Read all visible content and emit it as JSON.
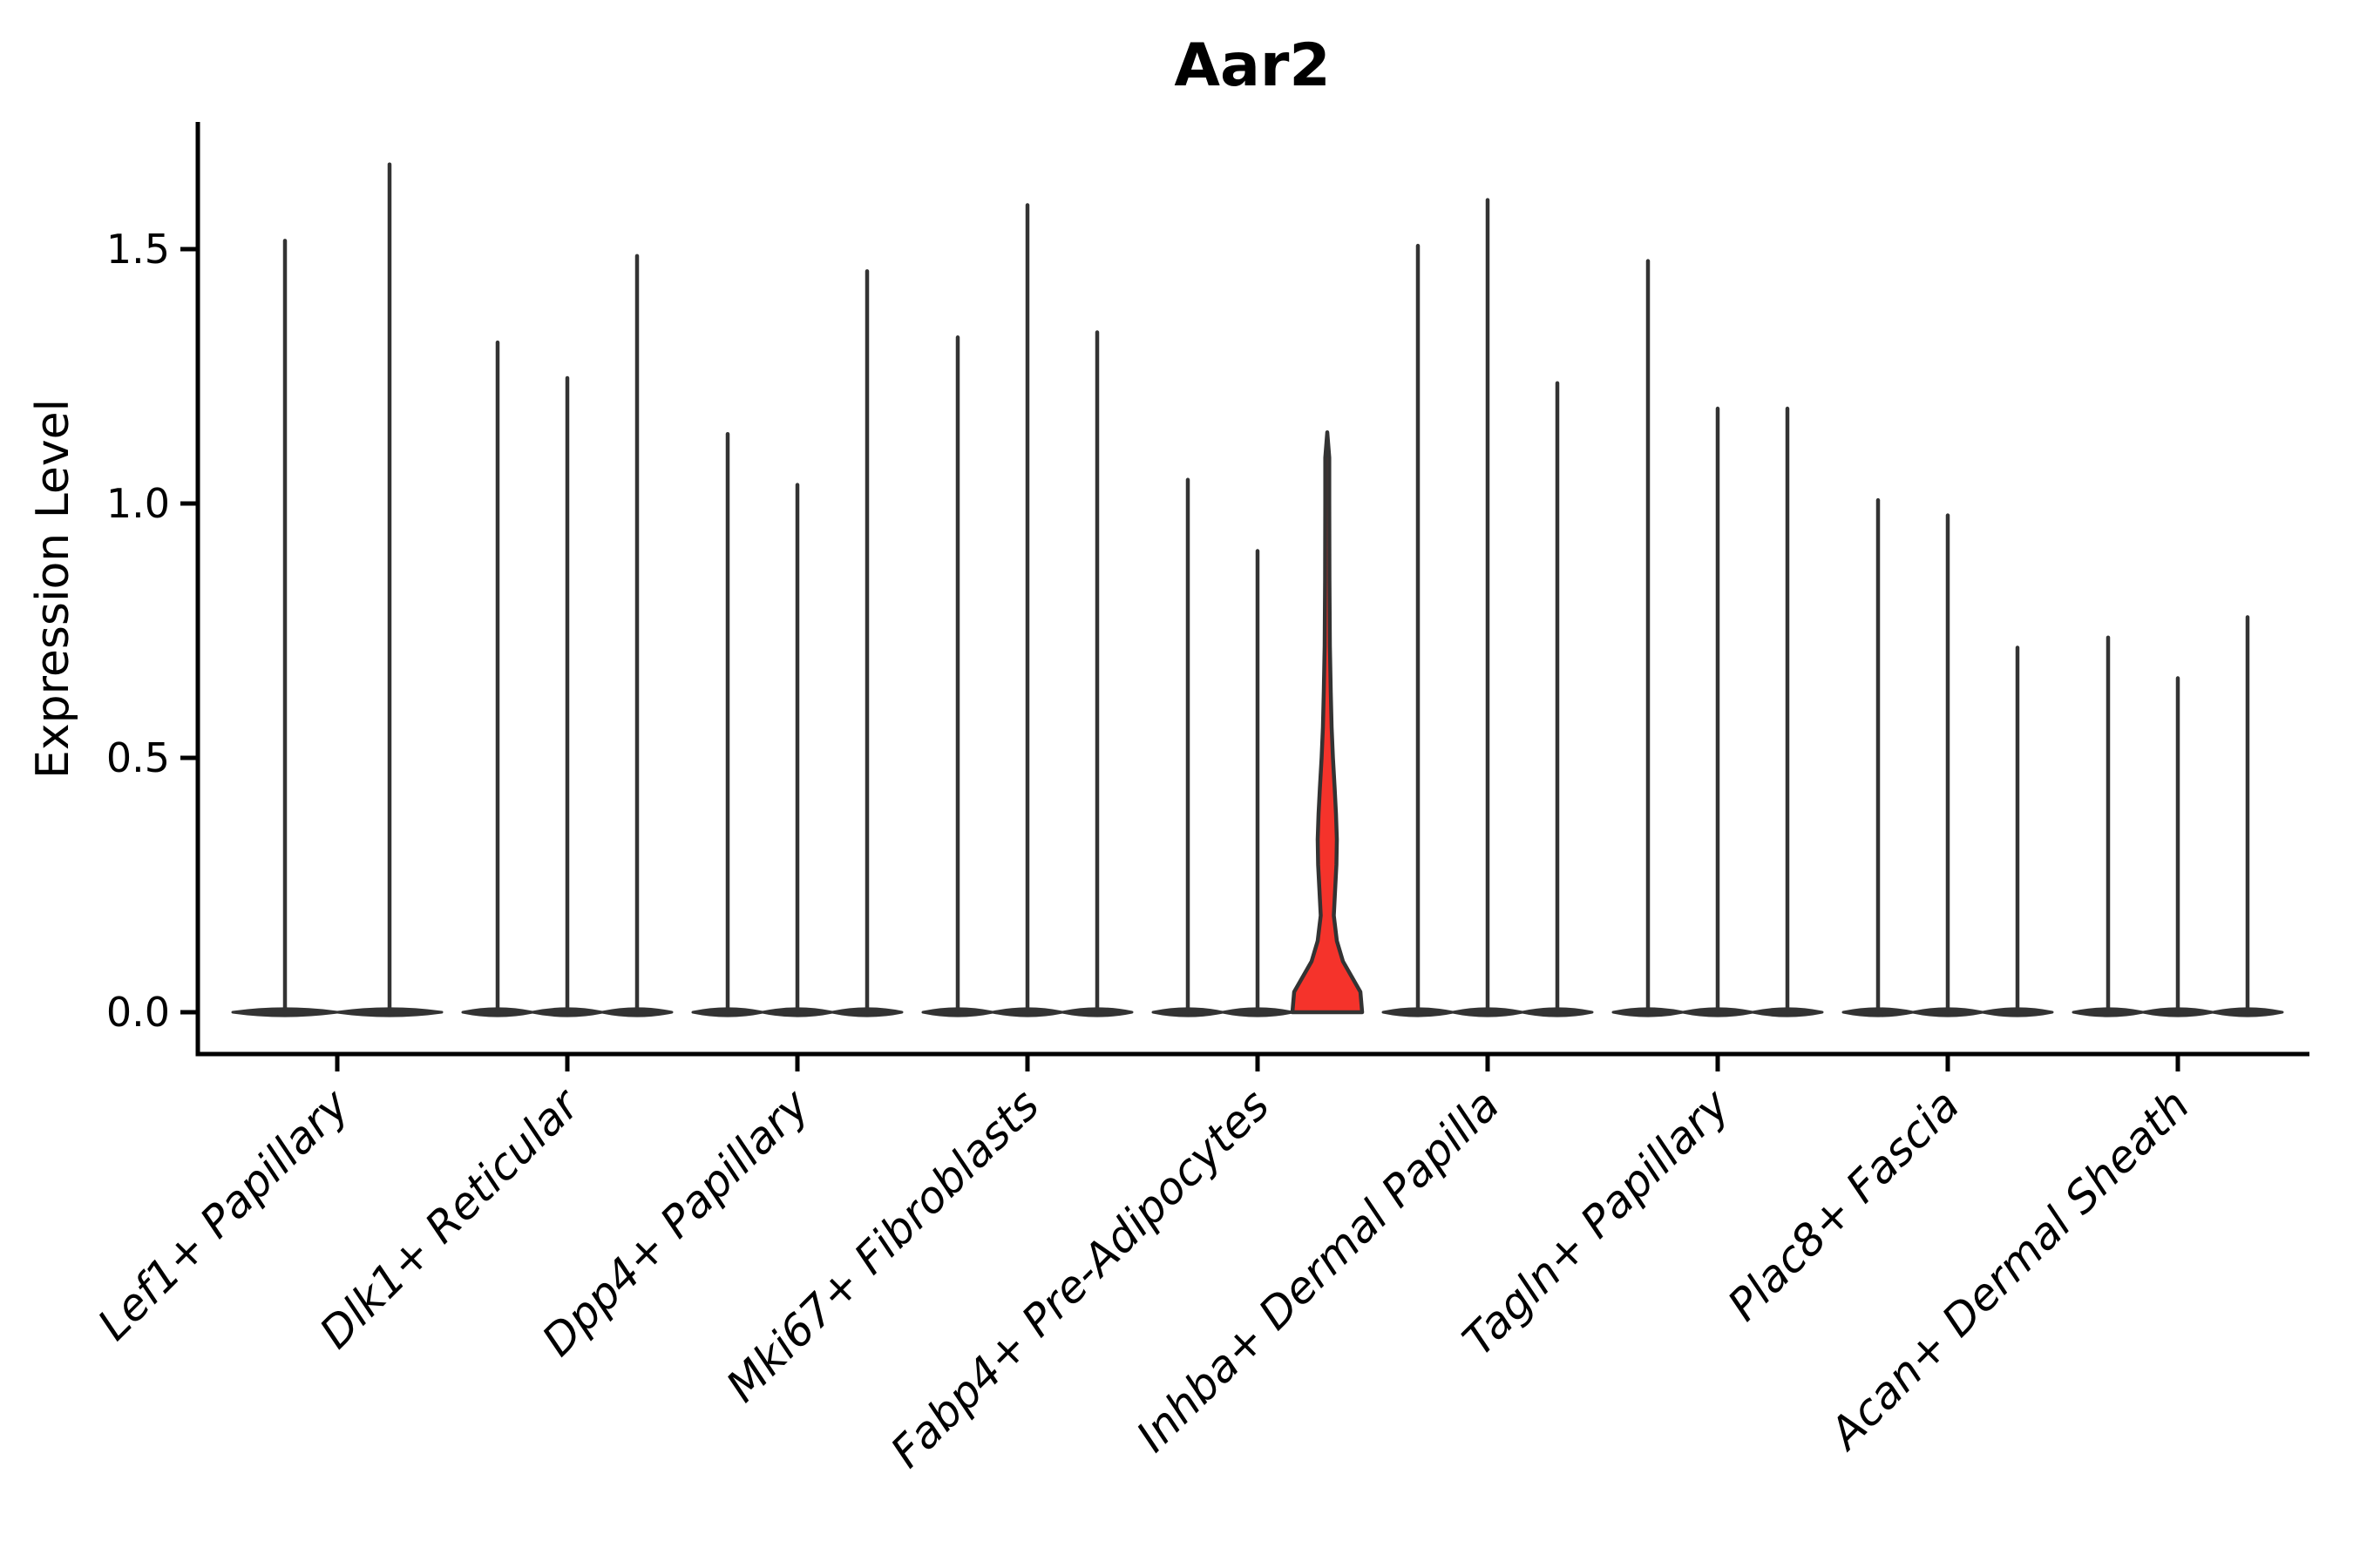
{
  "title": "Aar2",
  "ylabel": "Expression Level",
  "colors": {
    "background": "#ffffff",
    "axis": "#000000",
    "violin_outline": "#333333",
    "highlight_fill": "#f5332b"
  },
  "chart_data": {
    "type": "violin",
    "title": "Aar2",
    "xlabel": "",
    "ylabel": "Expression Level",
    "grid": false,
    "legend": null,
    "ylim": [
      -0.08,
      1.75
    ],
    "ytick_labels": [
      "0.0",
      "0.5",
      "1.0",
      "1.5"
    ],
    "ytick_values": [
      0.0,
      0.5,
      1.0,
      1.5
    ],
    "x_labels_rotation_deg": 45,
    "x_labels_italic": true,
    "categories": [
      "Lef1+ Papillary",
      "Dlk1+ Reticular",
      "Dpp4+ Papillary",
      "Mki67+ Fibroblasts",
      "Fabp4+ Pre-Adipocytes",
      "Inhba+ Dermal Papilla",
      "Tagln+ Papillary",
      "Plac8+ Fascia",
      "Acan+ Dermal Sheath"
    ],
    "groups": [
      {
        "category": "Lef1+ Papillary",
        "violin_max_values": [
          1.52,
          1.67
        ]
      },
      {
        "category": "Dlk1+ Reticular",
        "violin_max_values": [
          1.32,
          1.25,
          1.49
        ]
      },
      {
        "category": "Dpp4+ Papillary",
        "violin_max_values": [
          1.14,
          1.04,
          1.46
        ]
      },
      {
        "category": "Mki67+ Fibroblasts",
        "violin_max_values": [
          1.33,
          1.59,
          1.34
        ]
      },
      {
        "category": "Fabp4+ Pre-Adipocytes",
        "violin_max_values": [
          1.05,
          0.91,
          1.14
        ],
        "highlighted_violin_index": 2
      },
      {
        "category": "Inhba+ Dermal Papilla",
        "violin_max_values": [
          1.51,
          1.6,
          1.24
        ]
      },
      {
        "category": "Tagln+ Papillary",
        "violin_max_values": [
          1.48,
          1.19,
          1.19
        ]
      },
      {
        "category": "Plac8+ Fascia",
        "violin_max_values": [
          1.01,
          0.98,
          0.72
        ]
      },
      {
        "category": "Acan+ Dermal Sheath",
        "violin_max_values": [
          0.74,
          0.66,
          0.78
        ]
      }
    ],
    "highlight": {
      "group": "Fabp4+ Pre-Adipocytes",
      "violin_index": 2,
      "fill": "#f5332b",
      "max": 1.14,
      "density_profile_value_halfwidth": [
        [
          0.0,
          40
        ],
        [
          0.04,
          38
        ],
        [
          0.07,
          28
        ],
        [
          0.1,
          18
        ],
        [
          0.14,
          11
        ],
        [
          0.19,
          7.5
        ],
        [
          0.24,
          9
        ],
        [
          0.29,
          10.5
        ],
        [
          0.34,
          11
        ],
        [
          0.39,
          10
        ],
        [
          0.44,
          8.5
        ],
        [
          0.5,
          6.5
        ],
        [
          0.56,
          5
        ],
        [
          0.63,
          4
        ],
        [
          0.72,
          3
        ],
        [
          0.85,
          2.5
        ],
        [
          1.0,
          2.3
        ],
        [
          1.09,
          2.3
        ],
        [
          1.14,
          0
        ]
      ]
    }
  }
}
